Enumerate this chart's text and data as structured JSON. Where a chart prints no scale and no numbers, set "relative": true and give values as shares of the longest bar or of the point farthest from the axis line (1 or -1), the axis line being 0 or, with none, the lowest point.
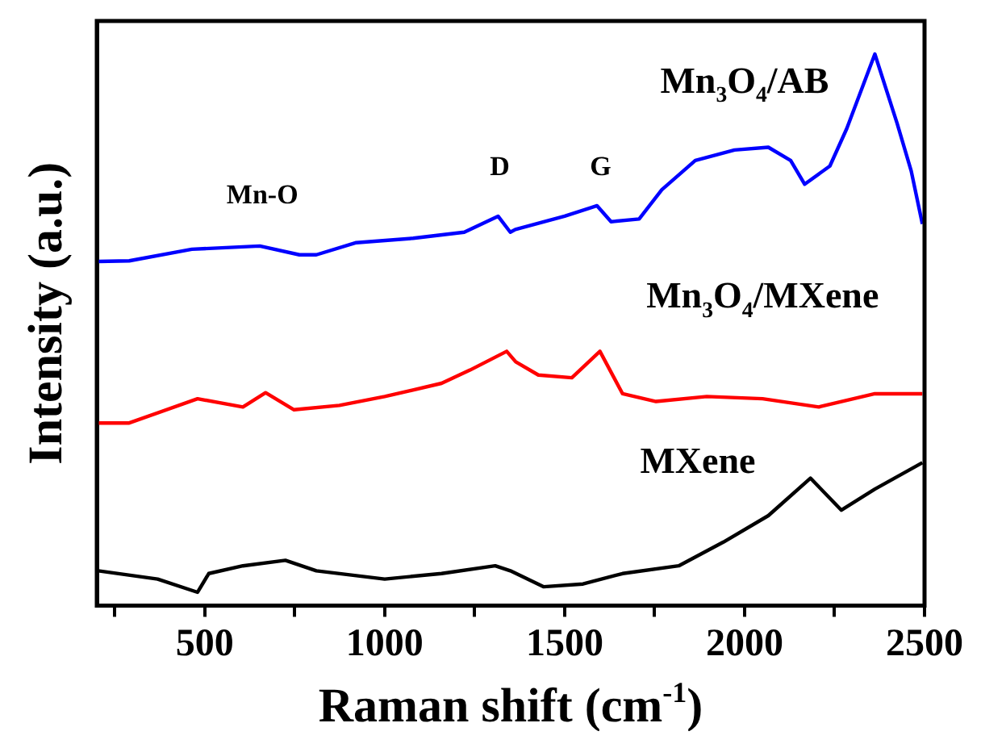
{
  "chart_data": {
    "type": "line",
    "xlabel": "Raman shift (cm$^{-1}$)",
    "ylabel": "Intensity (a.u.)",
    "relative": true,
    "xlim": [
      200,
      2500
    ],
    "xticks": [
      {
        "value": 250,
        "label": null
      },
      500,
      {
        "value": 750,
        "label": null
      },
      1000,
      {
        "value": 1250,
        "label": null
      },
      1500,
      {
        "value": 1750,
        "label": null
      },
      2000,
      {
        "value": 2250,
        "label": null
      },
      2500
    ],
    "tick_labels": "x",
    "legend": false,
    "grid": false,
    "marker": "none",
    "line_style": "solid",
    "series": [
      {
        "name": "Mn$_{3}$O$_{4}$/AB",
        "color": "#0000ff",
        "x": [
          204,
          290,
          464,
          653,
          763,
          810,
          921,
          1079,
          1221,
          1315,
          1349,
          1363,
          1500,
          1590,
          1629,
          1707,
          1770,
          1863,
          1972,
          2066,
          2128,
          2167,
          2237,
          2284,
          2362,
          2424,
          2463,
          2494
        ],
        "values": [
          0.624,
          0.625,
          0.646,
          0.652,
          0.636,
          0.636,
          0.658,
          0.666,
          0.677,
          0.706,
          0.677,
          0.682,
          0.706,
          0.725,
          0.696,
          0.701,
          0.754,
          0.807,
          0.826,
          0.831,
          0.807,
          0.764,
          0.797,
          0.865,
          1.0,
          0.874,
          0.788,
          0.692
        ]
      },
      {
        "name": "Mn$_{3}$O$_{4}$/MXene",
        "color": "#ff0000",
        "x": [
          204,
          290,
          480,
          606,
          669,
          748,
          874,
          1000,
          1158,
          1237,
          1339,
          1364,
          1427,
          1520,
          1598,
          1661,
          1754,
          1895,
          2050,
          2206,
          2362,
          2494
        ],
        "values": [
          0.331,
          0.331,
          0.375,
          0.36,
          0.386,
          0.355,
          0.363,
          0.379,
          0.403,
          0.427,
          0.461,
          0.442,
          0.418,
          0.413,
          0.461,
          0.384,
          0.37,
          0.379,
          0.375,
          0.36,
          0.384,
          0.384
        ]
      },
      {
        "name": "MXene",
        "color": "#000000",
        "x": [
          204,
          369,
          480,
          511,
          606,
          724,
          810,
          1000,
          1158,
          1307,
          1349,
          1442,
          1551,
          1661,
          1817,
          1941,
          2066,
          2183,
          2269,
          2362,
          2494
        ],
        "values": [
          0.063,
          0.048,
          0.024,
          0.058,
          0.072,
          0.082,
          0.063,
          0.048,
          0.058,
          0.072,
          0.063,
          0.034,
          0.039,
          0.058,
          0.072,
          0.115,
          0.163,
          0.231,
          0.173,
          0.211,
          0.259
        ]
      }
    ],
    "annotations": [
      "Mn-O",
      "D",
      "G"
    ]
  }
}
